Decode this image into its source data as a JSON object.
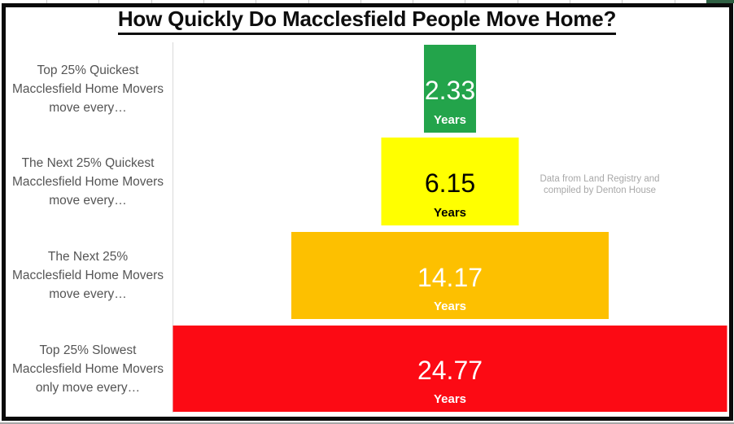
{
  "title": "How Quickly Do Macclesfield People Move Home?",
  "citation": {
    "line1": "Data from Land Registry and",
    "line2": "compiled by Denton House"
  },
  "chart_data": {
    "type": "bar",
    "subtype": "centered-funnel-pyramid",
    "title": "How Quickly Do Macclesfield People Move Home?",
    "unit": "Years",
    "categories": [
      "Top 25% Quickest Macclesfield Home  Movers move every…",
      "The Next 25% Quickest Macclesfield Home Movers move every…",
      "The Next 25% Macclesfield Home Movers move every…",
      "Top 25% Slowest Macclesfield Home Movers only move every…"
    ],
    "values": [
      2.33,
      6.15,
      14.17,
      24.77
    ],
    "bar_colors": [
      "#23a44b",
      "#ffff00",
      "#fdc000",
      "#fc0a14"
    ],
    "value_text_colors": [
      "#ffffff",
      "#000000",
      "#ffffff",
      "#ffffff"
    ],
    "annotation": "Data from Land Registry and compiled by Denton House",
    "legend": "none",
    "grid": "off",
    "bars": [
      {
        "label_lines": [
          "Top 25% Quickest",
          "Macclesfield Home  Movers",
          "move every…"
        ],
        "value": 2.33,
        "value_label": "2.33",
        "unit_label": "Years",
        "color": "#23a44b",
        "text_color": "#ffffff"
      },
      {
        "label_lines": [
          "The Next 25% Quickest",
          "Macclesfield Home Movers",
          "move every…"
        ],
        "value": 6.15,
        "value_label": "6.15",
        "unit_label": "Years",
        "color": "#ffff00",
        "text_color": "#000000"
      },
      {
        "label_lines": [
          "The Next 25%",
          "Macclesfield Home Movers",
          "move every…"
        ],
        "value": 14.17,
        "value_label": "14.17",
        "unit_label": "Years",
        "color": "#fdc000",
        "text_color": "#ffffff"
      },
      {
        "label_lines": [
          "Top 25% Slowest",
          "Macclesfield Home Movers",
          "only move every…"
        ],
        "value": 24.77,
        "value_label": "24.77",
        "unit_label": "Years",
        "color": "#fc0a14",
        "text_color": "#ffffff"
      }
    ]
  },
  "decor": {
    "corner_cell_color": "#2f6043"
  }
}
